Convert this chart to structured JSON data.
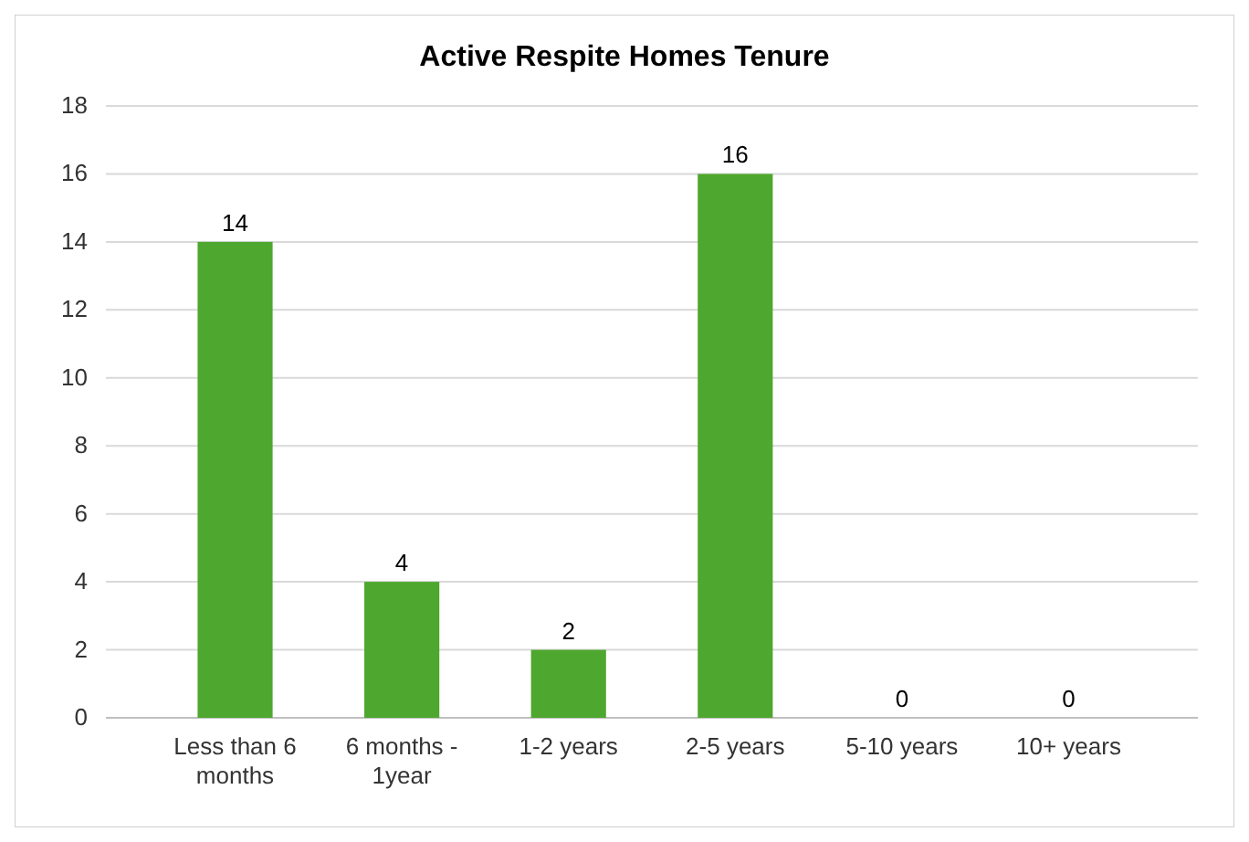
{
  "chart_data": {
    "type": "bar",
    "title": "Active Respite Homes Tenure",
    "categories": [
      "Less than 6 months",
      "6 months - 1year",
      "1-2 years",
      "2-5 years",
      "5-10 years",
      "10+ years"
    ],
    "values": [
      14,
      4,
      2,
      16,
      0,
      0
    ],
    "color": "#4ea72e",
    "ylim": [
      0,
      18
    ],
    "yticks": [
      0,
      2,
      4,
      6,
      8,
      10,
      12,
      14,
      16,
      18
    ],
    "grid": "y",
    "data_labels": true
  }
}
